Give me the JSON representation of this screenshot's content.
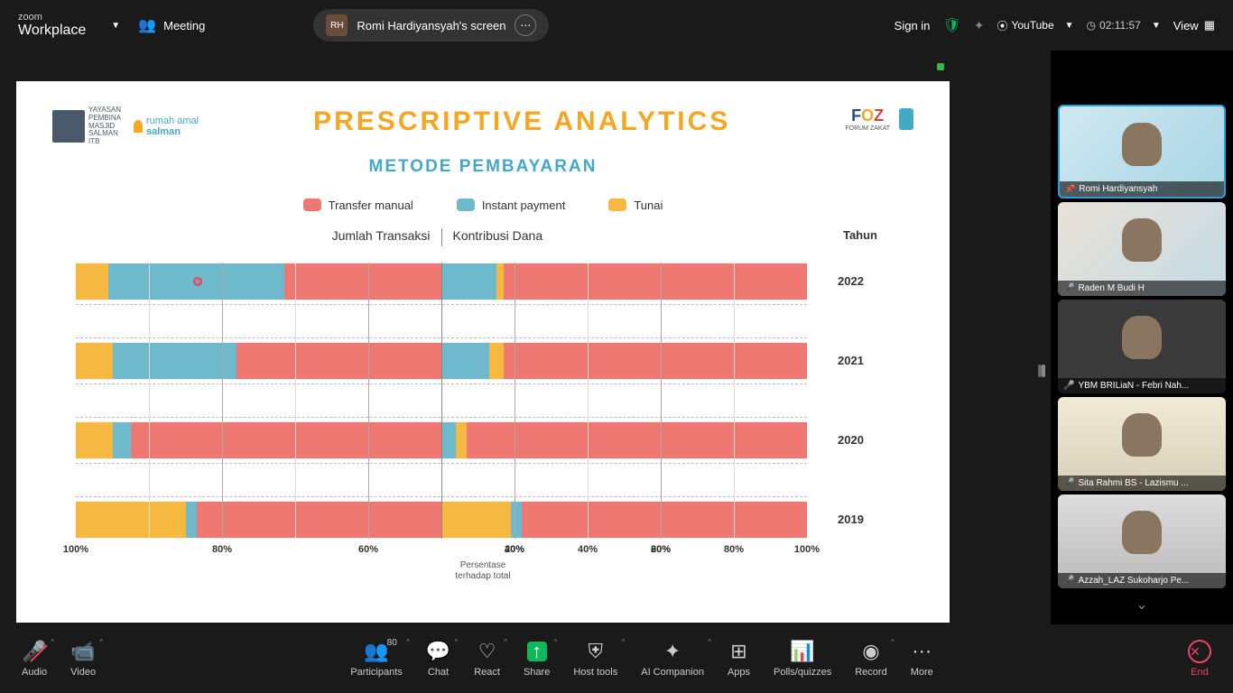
{
  "topbar": {
    "brand": {
      "line1": "zoom",
      "line2": "Workplace"
    },
    "meeting_label": "Meeting",
    "presenter_initials": "RH",
    "presenter_text": "Romi Hardiyansyah's screen",
    "signin": "Sign in",
    "youtube": "YouTube",
    "timer": "02:11:57",
    "view": "View"
  },
  "slide": {
    "title": "PRESCRIPTIVE ANALYTICS",
    "subtitle": "METODE PEMBAYARAN",
    "logos": {
      "salman_lines": [
        "YAYASAN",
        "PEMBINA",
        "MASJID",
        "SALMAN",
        "ITB"
      ],
      "rumah_line1": "rumah amal",
      "rumah_line2": "salman",
      "foz": "FOZ",
      "foz_sub": "FORUM ZAKAT"
    },
    "legend": [
      {
        "label": "Transfer manual",
        "color": "#ef7872"
      },
      {
        "label": "Instant payment",
        "color": "#6fb9cc"
      },
      {
        "label": "Tunai",
        "color": "#f5b841"
      }
    ],
    "colors": {
      "transfer": "#ef7872",
      "instant": "#6fb9cc",
      "tunai": "#f5b841",
      "grid_major": "#888888",
      "grid_minor": "#cccccc",
      "grid_dashed": "#bbbbbb"
    },
    "chart": {
      "left_title": "Jumlah Transaksi",
      "right_title": "Kontribusi Dana",
      "year_header": "Tahun",
      "x_label_line1": "Persentase",
      "x_label_line2": "terhadap total",
      "ticks_left": [
        "100%",
        "80%",
        "60%",
        "40%",
        "20%"
      ],
      "ticks_right": [
        "20%",
        "40%",
        "60%",
        "80%",
        "100%"
      ],
      "rows": [
        {
          "year": "2022",
          "left": {
            "transfer": 43,
            "instant": 48,
            "tunai": 9
          },
          "right": {
            "instant": 15,
            "tunai": 2,
            "transfer": 83
          }
        },
        {
          "year": "2021",
          "left": {
            "transfer": 56,
            "instant": 34,
            "tunai": 10
          },
          "right": {
            "instant": 13,
            "tunai": 4,
            "transfer": 83
          }
        },
        {
          "year": "2020",
          "left": {
            "transfer": 85,
            "instant": 5,
            "tunai": 10
          },
          "right": {
            "instant": 4,
            "tunai": 3,
            "transfer": 93
          }
        },
        {
          "year": "2019",
          "left": {
            "transfer": 67,
            "instant": 3,
            "tunai": 30
          },
          "right": {
            "tunai": 19,
            "instant": 3,
            "transfer": 78
          }
        }
      ],
      "pointer": {
        "row": 0,
        "side": "left",
        "pct_from_center": 68
      }
    }
  },
  "participants": [
    {
      "name": "Romi Hardiyansyah",
      "pinned": true,
      "muted": false,
      "bg": "tile-bg1"
    },
    {
      "name": "Raden M Budi H",
      "pinned": false,
      "muted": true,
      "bg": "tile-bg2"
    },
    {
      "name": "YBM BRILiaN - Febri Nah...",
      "pinned": false,
      "muted": true,
      "bg": "tile-bg3"
    },
    {
      "name": "Sita Rahmi BS - Lazismu ...",
      "pinned": false,
      "muted": true,
      "bg": "tile-bg4"
    },
    {
      "name": "Azzah_LAZ Sukoharjo Pe...",
      "pinned": false,
      "muted": true,
      "bg": "tile-bg5"
    }
  ],
  "toolbar": {
    "audio": "Audio",
    "video": "Video",
    "participants": "Participants",
    "participant_count": "80",
    "chat": "Chat",
    "react": "React",
    "share": "Share",
    "host": "Host tools",
    "ai": "AI Companion",
    "apps": "Apps",
    "polls": "Polls/quizzes",
    "record": "Record",
    "more": "More",
    "end": "End"
  }
}
